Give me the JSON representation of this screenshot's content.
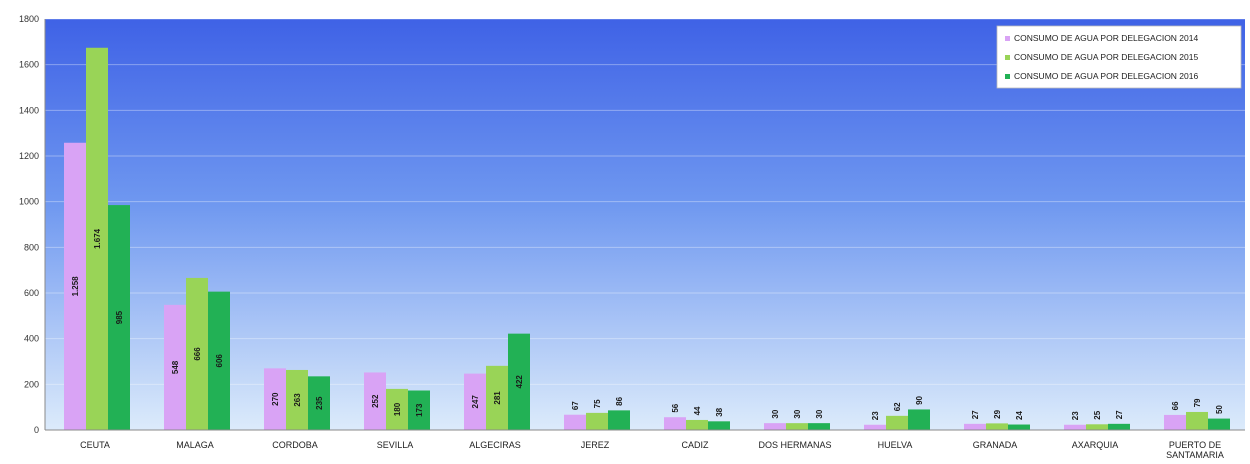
{
  "chart_data": {
    "type": "bar",
    "title": "",
    "xlabel": "",
    "ylabel": "",
    "ylim": [
      0,
      1800
    ],
    "yticks": [
      0,
      200,
      400,
      600,
      800,
      1000,
      1200,
      1400,
      1600,
      1800
    ],
    "grid": true,
    "legend_position": "top-right",
    "categories": [
      [
        "CEUTA"
      ],
      [
        "MALAGA"
      ],
      [
        "CORDOBA"
      ],
      [
        "SEVILLA"
      ],
      [
        "ALGECIRAS"
      ],
      [
        "JEREZ"
      ],
      [
        "CADIZ"
      ],
      [
        "DOS HERMANAS"
      ],
      [
        "HUELVA"
      ],
      [
        "GRANADA"
      ],
      [
        "AXARQUIA"
      ],
      [
        "PUERTO DE",
        "SANTAMARIA"
      ]
    ],
    "series": [
      {
        "name": "CONSUMO DE AGUA POR DELEGACION 2014",
        "color": "#d9a3f5",
        "values": [
          1258,
          548,
          270,
          252,
          247,
          67,
          56,
          30,
          23,
          27,
          23,
          66
        ],
        "labels": [
          "1.258",
          "548",
          "270",
          "252",
          "247",
          "67",
          "56",
          "30",
          "23",
          "27",
          "23",
          "66"
        ]
      },
      {
        "name": "CONSUMO DE AGUA POR DELEGACION 2015",
        "color": "#99d457",
        "values": [
          1674,
          666,
          263,
          180,
          281,
          75,
          44,
          30,
          62,
          29,
          25,
          79
        ],
        "labels": [
          "1.674",
          "666",
          "263",
          "180",
          "281",
          "75",
          "44",
          "30",
          "62",
          "29",
          "25",
          "79"
        ]
      },
      {
        "name": "CONSUMO DE AGUA POR DELEGACION 2016",
        "color": "#22b155",
        "values": [
          985,
          606,
          235,
          173,
          422,
          86,
          38,
          30,
          90,
          24,
          27,
          50
        ],
        "labels": [
          "985",
          "606",
          "235",
          "173",
          "422",
          "86",
          "38",
          "30",
          "90",
          "24",
          "27",
          "50"
        ]
      }
    ],
    "colors": {
      "plot_top": "#3f62e6",
      "plot_bottom": "#dcebfb"
    }
  }
}
